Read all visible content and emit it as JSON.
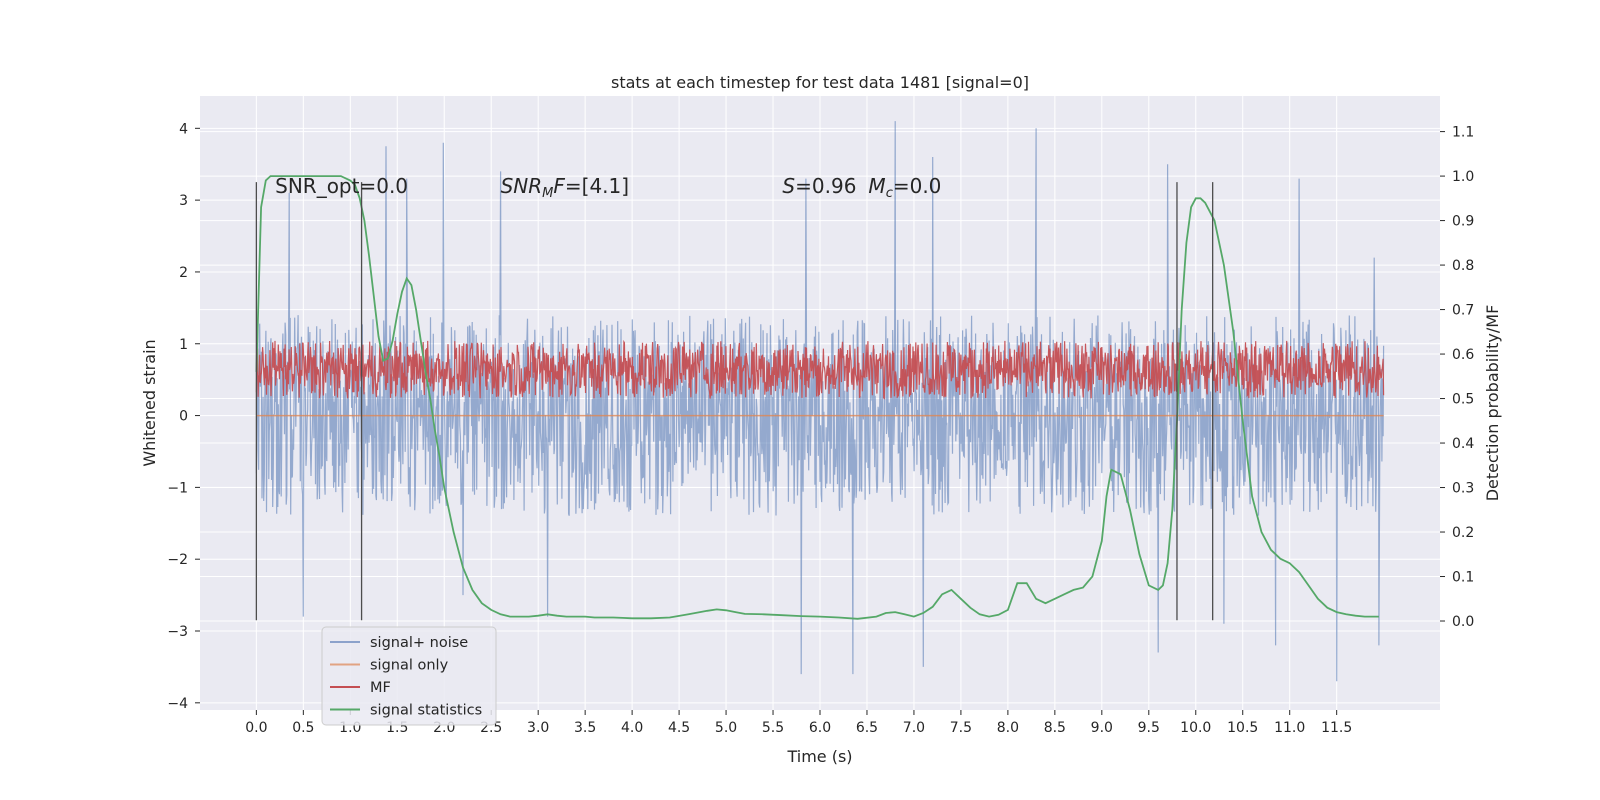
{
  "chart_data": {
    "type": "line",
    "title": "stats at each timestep for test data 1481 [signal=0]",
    "xlabel": "Time (s)",
    "ylabel": "Whitened strain",
    "y2label": "Detection probability/MF",
    "xlim": [
      -0.6,
      12.6
    ],
    "ylim": [
      -4.1,
      4.45
    ],
    "y2lim": [
      -0.2,
      1.18
    ],
    "xticks": [
      "0.0",
      "0.5",
      "1.0",
      "1.5",
      "2.0",
      "2.5",
      "3.0",
      "3.5",
      "4.0",
      "4.5",
      "5.0",
      "5.5",
      "6.0",
      "6.5",
      "7.0",
      "7.5",
      "8.0",
      "8.5",
      "9.0",
      "9.5",
      "10.0",
      "10.5",
      "11.0",
      "11.5"
    ],
    "yticks": [
      "4",
      "3",
      "2",
      "1",
      "0",
      "−1",
      "−2",
      "−3",
      "−4"
    ],
    "y2ticks": [
      "1.1",
      "1.0",
      "0.9",
      "0.8",
      "0.7",
      "0.6",
      "0.5",
      "0.4",
      "0.3",
      "0.2",
      "0.1",
      "0.0"
    ],
    "grid": true,
    "legend_position": "lower-left",
    "annotations": [
      {
        "text": "SNR_opt=0.0",
        "x": 0.2,
        "y": 3.2
      },
      {
        "text": "SNR_MF=[4.1]",
        "x": 2.6,
        "y": 3.2
      },
      {
        "text": "S=0.96   M_c=0.0",
        "x": 5.6,
        "y": 3.2
      }
    ],
    "vlines": [
      {
        "x": 0.0,
        "y_from": -2.85,
        "y_to": 3.25
      },
      {
        "x": 1.12,
        "y_from": -2.85,
        "y_to": 3.25
      },
      {
        "x": 9.8,
        "y_from": -2.85,
        "y_to": 3.25
      },
      {
        "x": 10.18,
        "y_from": -2.85,
        "y_to": 3.25
      }
    ],
    "series": [
      {
        "name": "signal+ noise",
        "color": "#4c72b0",
        "axis": "left",
        "kind": "noise",
        "x_range": [
          0.0,
          12.0
        ],
        "typical_range": [
          -1.4,
          1.4
        ],
        "peaks": [
          {
            "x": 0.35,
            "y": 3.1
          },
          {
            "x": 1.38,
            "y": 3.75
          },
          {
            "x": 1.6,
            "y": 3.3
          },
          {
            "x": 1.99,
            "y": 3.8
          },
          {
            "x": 2.6,
            "y": 3.4
          },
          {
            "x": 5.85,
            "y": 3.3
          },
          {
            "x": 6.8,
            "y": 4.1
          },
          {
            "x": 7.2,
            "y": 3.6
          },
          {
            "x": 8.3,
            "y": 4.0
          },
          {
            "x": 9.7,
            "y": 3.5
          },
          {
            "x": 11.1,
            "y": 3.3
          },
          {
            "x": 11.9,
            "y": 2.2
          },
          {
            "x": 0.5,
            "y": -2.8
          },
          {
            "x": 2.2,
            "y": -2.5
          },
          {
            "x": 3.1,
            "y": -2.8
          },
          {
            "x": 5.8,
            "y": -3.6
          },
          {
            "x": 6.35,
            "y": -3.6
          },
          {
            "x": 7.1,
            "y": -3.5
          },
          {
            "x": 9.6,
            "y": -3.3
          },
          {
            "x": 10.3,
            "y": -2.9
          },
          {
            "x": 10.85,
            "y": -3.2
          },
          {
            "x": 11.5,
            "y": -3.7
          },
          {
            "x": 11.95,
            "y": -3.2
          }
        ]
      },
      {
        "name": "signal only",
        "color": "#dd8452",
        "axis": "left",
        "x": [
          0.0,
          12.0
        ],
        "y": [
          0.0,
          0.0
        ]
      },
      {
        "name": "MF",
        "color": "#c44e52",
        "axis": "right",
        "kind": "noise",
        "x_range": [
          0.0,
          12.0
        ],
        "typical_range": [
          0.5,
          0.63
        ],
        "peaks": [
          {
            "x": 0.1,
            "y": 0.6
          },
          {
            "x": 3.0,
            "y": 0.61
          },
          {
            "x": 3.3,
            "y": 0.6
          },
          {
            "x": 5.1,
            "y": 0.59
          },
          {
            "x": 5.7,
            "y": 0.61
          },
          {
            "x": 6.6,
            "y": 0.6
          },
          {
            "x": 8.2,
            "y": 0.59
          },
          {
            "x": 9.9,
            "y": 0.6
          },
          {
            "x": 11.9,
            "y": 0.6
          }
        ]
      },
      {
        "name": "signal statistics",
        "color": "#55a868",
        "axis": "right",
        "x": [
          0.0,
          0.05,
          0.1,
          0.15,
          0.2,
          0.3,
          0.4,
          0.5,
          0.6,
          0.7,
          0.8,
          0.9,
          1.0,
          1.05,
          1.1,
          1.15,
          1.2,
          1.25,
          1.3,
          1.35,
          1.4,
          1.45,
          1.5,
          1.55,
          1.6,
          1.65,
          1.7,
          1.75,
          1.8,
          1.85,
          1.9,
          1.95,
          2.0,
          2.05,
          2.1,
          2.15,
          2.2,
          2.3,
          2.4,
          2.5,
          2.6,
          2.7,
          2.8,
          2.9,
          3.0,
          3.1,
          3.2,
          3.3,
          3.4,
          3.5,
          3.6,
          3.7,
          3.8,
          3.9,
          4.0,
          4.2,
          4.4,
          4.6,
          4.8,
          4.9,
          5.0,
          5.1,
          5.2,
          5.4,
          5.6,
          5.8,
          6.0,
          6.2,
          6.4,
          6.6,
          6.7,
          6.8,
          6.9,
          7.0,
          7.1,
          7.2,
          7.3,
          7.4,
          7.5,
          7.6,
          7.7,
          7.8,
          7.9,
          8.0,
          8.1,
          8.2,
          8.3,
          8.4,
          8.5,
          8.6,
          8.7,
          8.8,
          8.9,
          9.0,
          9.05,
          9.1,
          9.2,
          9.3,
          9.4,
          9.5,
          9.6,
          9.65,
          9.7,
          9.75,
          9.8,
          9.85,
          9.9,
          9.95,
          10.0,
          10.05,
          10.1,
          10.2,
          10.3,
          10.4,
          10.5,
          10.6,
          10.7,
          10.8,
          10.9,
          11.0,
          11.1,
          11.2,
          11.3,
          11.4,
          11.5,
          11.6,
          11.7,
          11.8,
          11.9,
          11.95
        ],
        "y": [
          0.56,
          0.93,
          0.99,
          1.0,
          1.0,
          1.0,
          1.0,
          1.0,
          1.0,
          1.0,
          1.0,
          1.0,
          0.99,
          0.98,
          0.95,
          0.9,
          0.82,
          0.73,
          0.64,
          0.585,
          0.59,
          0.63,
          0.69,
          0.74,
          0.77,
          0.755,
          0.7,
          0.63,
          0.56,
          0.5,
          0.43,
          0.37,
          0.3,
          0.25,
          0.2,
          0.16,
          0.12,
          0.07,
          0.04,
          0.025,
          0.015,
          0.01,
          0.01,
          0.01,
          0.012,
          0.015,
          0.012,
          0.01,
          0.01,
          0.01,
          0.008,
          0.008,
          0.008,
          0.007,
          0.006,
          0.006,
          0.008,
          0.015,
          0.023,
          0.026,
          0.024,
          0.02,
          0.016,
          0.015,
          0.013,
          0.011,
          0.01,
          0.008,
          0.005,
          0.01,
          0.018,
          0.02,
          0.015,
          0.01,
          0.018,
          0.032,
          0.06,
          0.07,
          0.05,
          0.03,
          0.015,
          0.01,
          0.014,
          0.025,
          0.085,
          0.085,
          0.05,
          0.04,
          0.05,
          0.06,
          0.07,
          0.075,
          0.1,
          0.18,
          0.28,
          0.34,
          0.33,
          0.25,
          0.15,
          0.08,
          0.07,
          0.08,
          0.13,
          0.25,
          0.45,
          0.7,
          0.85,
          0.93,
          0.95,
          0.95,
          0.94,
          0.9,
          0.8,
          0.65,
          0.45,
          0.28,
          0.2,
          0.16,
          0.14,
          0.13,
          0.11,
          0.08,
          0.05,
          0.03,
          0.02,
          0.015,
          0.012,
          0.01,
          0.01,
          0.01
        ]
      }
    ]
  }
}
